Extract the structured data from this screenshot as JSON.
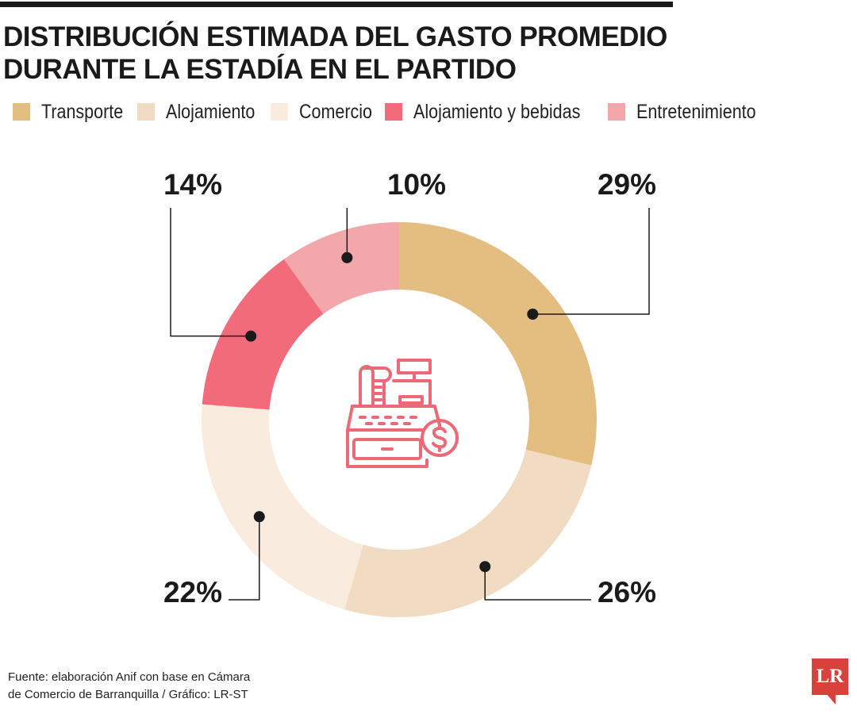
{
  "title": {
    "line1": "DISTRIBUCIÓN ESTIMADA DEL GASTO PROMEDIO",
    "line2": "DURANTE LA ESTADÍA EN EL PARTIDO"
  },
  "chart_data": {
    "type": "pie",
    "variant": "donut",
    "title": "DISTRIBUCIÓN ESTIMADA DEL GASTO PROMEDIO DURANTE LA ESTADÍA EN EL PARTIDO",
    "legend_position": "top",
    "center_icon": "cash-register-icon",
    "slices": [
      {
        "label": "Transporte",
        "value": 29,
        "display": "29%",
        "color": "#e4be80"
      },
      {
        "label": "Alojamiento",
        "value": 26,
        "display": "26%",
        "color": "#f1dcc3"
      },
      {
        "label": "Comercio",
        "value": 22,
        "display": "22%",
        "color": "#f9ebdd"
      },
      {
        "label": "Alojamiento y bebidas",
        "value": 14,
        "display": "14%",
        "color": "#f26b7b"
      },
      {
        "label": "Entretenimiento",
        "value": 10,
        "display": "10%",
        "color": "#f3a7ab"
      }
    ]
  },
  "source": {
    "line1": "Fuente: elaboración Anif con base en Cámara",
    "line2": "de Comercio de Barranquilla / Gráfico: LR-ST"
  },
  "logo": {
    "text": "LR",
    "color": "#d9413b"
  },
  "icon_color": "#ea6a78"
}
